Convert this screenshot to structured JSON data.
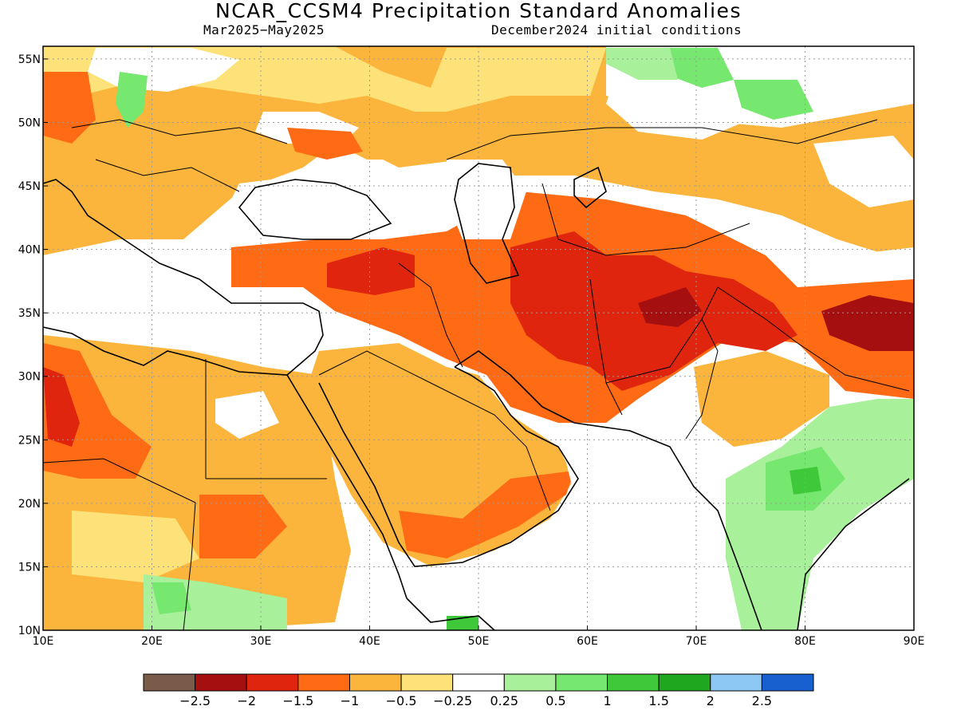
{
  "header": {
    "title": "NCAR_CCSM4 Precipitation Standard Anomalies",
    "period": "Mar2025−May2025",
    "init": "December2024 initial conditions"
  },
  "map": {
    "lon_range": [
      10,
      90
    ],
    "lat_range": [
      10,
      56
    ],
    "lon_ticks": [
      "10E",
      "20E",
      "30E",
      "40E",
      "50E",
      "60E",
      "70E",
      "80E",
      "90E"
    ],
    "lat_ticks": [
      "10N",
      "15N",
      "20N",
      "25N",
      "30N",
      "35N",
      "40N",
      "45N",
      "50N",
      "55N"
    ],
    "grid": "dotted",
    "colors": {
      "very_dry": "#7a5a48",
      "le_m2": "#a50f0f",
      "m2_m15": "#e0250f",
      "m15_m1": "#ff6a14",
      "m1_m05": "#fcb53c",
      "m05_m025": "#fde27a",
      "near_normal": "#ffffff",
      "p025_p05": "#a8f09a",
      "p05_p1": "#76e870",
      "p1_p15": "#3ec83a",
      "p15_p2": "#1fa71f",
      "p2_p25": "#8cc8f2",
      "gt_p25": "#1860d0"
    }
  },
  "colorbar": {
    "colors": [
      "#7a5a48",
      "#a50f0f",
      "#e0250f",
      "#ff6a14",
      "#fcb53c",
      "#fde27a",
      "#ffffff",
      "#a8f09a",
      "#76e870",
      "#3ec83a",
      "#1fa71f",
      "#8cc8f2",
      "#1860d0"
    ],
    "labels": [
      "−2.5",
      "−2",
      "−1.5",
      "−1",
      "−0.5",
      "−0.25",
      "0.25",
      "0.5",
      "1",
      "1.5",
      "2",
      "2.5"
    ]
  }
}
